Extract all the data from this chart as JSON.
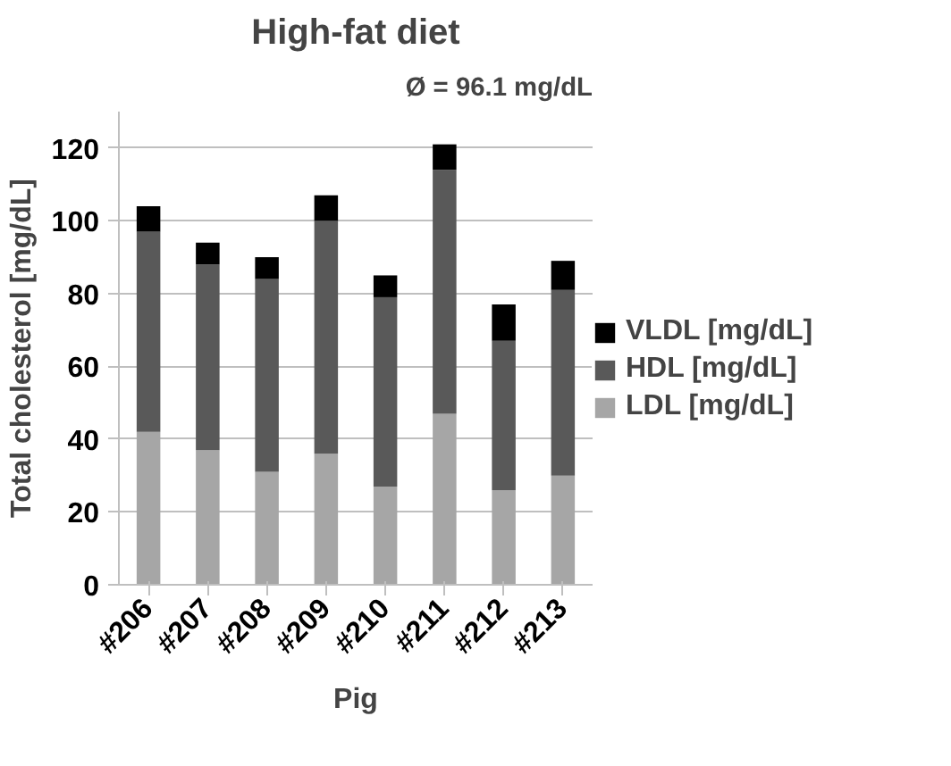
{
  "chart_data": {
    "type": "bar",
    "title": "High-fat diet",
    "xlabel": "Pig",
    "ylabel": "Total cholesterol [mg/dL]",
    "annotations": [
      "Ø = 96.1 mg/dL"
    ],
    "categories": [
      "#206",
      "#207",
      "#208",
      "#209",
      "#210",
      "#211",
      "#212",
      "#213"
    ],
    "stacked": true,
    "ylim": [
      0,
      130
    ],
    "yticks": [
      0,
      20,
      40,
      60,
      80,
      100,
      120
    ],
    "grid": "y",
    "legend": "right",
    "series": [
      {
        "name": "LDL [mg/dL]",
        "color": "#a6a6a6",
        "values": [
          42,
          37,
          31,
          36,
          27,
          47,
          26,
          30
        ]
      },
      {
        "name": "HDL [mg/dL]",
        "color": "#595959",
        "values": [
          55,
          51,
          53,
          64,
          52,
          67,
          41,
          51
        ]
      },
      {
        "name": "VLDL [mg/dL]",
        "color": "#000000",
        "values": [
          7,
          6,
          6,
          7,
          6,
          7,
          10,
          8
        ]
      }
    ]
  }
}
